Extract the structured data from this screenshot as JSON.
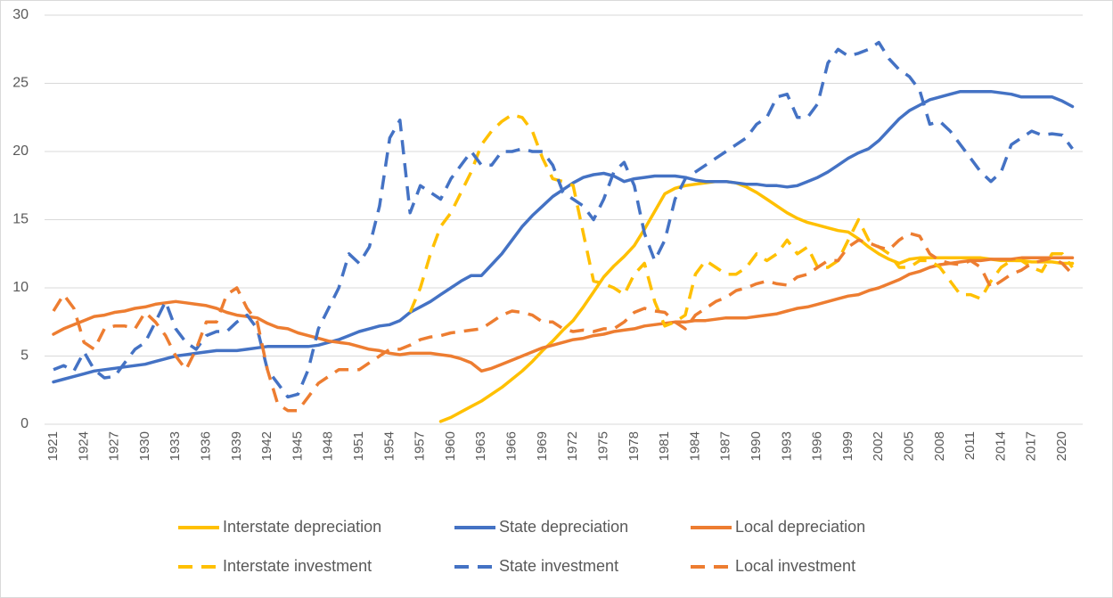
{
  "chart_data": {
    "type": "line",
    "categories": [
      "1921",
      null,
      null,
      "1924",
      null,
      null,
      "1927",
      null,
      null,
      "1930",
      null,
      null,
      "1933",
      null,
      null,
      "1936",
      null,
      null,
      "1939",
      null,
      null,
      "1942",
      null,
      null,
      "1945",
      null,
      null,
      "1948",
      null,
      null,
      "1951",
      null,
      null,
      "1954",
      null,
      null,
      "1957",
      null,
      null,
      "1960",
      null,
      null,
      "1963",
      null,
      null,
      "1966",
      null,
      null,
      "1969",
      null,
      null,
      "1972",
      null,
      null,
      "1975",
      null,
      null,
      "1978",
      null,
      null,
      "1981",
      null,
      null,
      "1984",
      null,
      null,
      "1987",
      null,
      null,
      "1990",
      null,
      null,
      "1993",
      null,
      null,
      "1996",
      null,
      null,
      "1999",
      null,
      null,
      "2002",
      null,
      null,
      "2005",
      null,
      null,
      "2008",
      null,
      null,
      "2011",
      null,
      null,
      "2014",
      null,
      null,
      "2017",
      null,
      null,
      "2020",
      null
    ],
    "ylim": [
      0,
      30
    ],
    "yticks": [
      0,
      5,
      10,
      15,
      20,
      25,
      30
    ],
    "grid": true,
    "series": [
      {
        "name": "Interstate depreciation",
        "color": "#FFC000",
        "dash": false,
        "values": [
          null,
          null,
          null,
          null,
          null,
          null,
          null,
          null,
          null,
          null,
          null,
          null,
          null,
          null,
          null,
          null,
          null,
          null,
          null,
          null,
          null,
          null,
          null,
          null,
          null,
          null,
          null,
          null,
          null,
          null,
          null,
          null,
          null,
          null,
          null,
          null,
          null,
          null,
          0.2,
          0.5,
          0.9,
          1.3,
          1.7,
          2.2,
          2.7,
          3.3,
          3.9,
          4.6,
          5.4,
          6.1,
          6.9,
          7.6,
          8.6,
          9.7,
          10.8,
          11.6,
          12.3,
          13.1,
          14.3,
          15.6,
          16.9,
          17.3,
          17.5,
          17.6,
          17.7,
          17.8,
          17.8,
          17.7,
          17.4,
          17.0,
          16.5,
          16.0,
          15.5,
          15.1,
          14.8,
          14.6,
          14.4,
          14.2,
          14.1,
          13.6,
          13.0,
          12.5,
          12.1,
          11.8,
          12.1,
          12.2,
          12.2,
          12.2,
          12.2,
          12.2,
          12.2,
          12.2,
          12.1,
          12.0,
          12.0,
          12.0,
          11.9,
          11.9,
          11.9,
          11.8,
          11.8
        ]
      },
      {
        "name": "State depreciation",
        "color": "#4472C4",
        "dash": false,
        "values": [
          3.1,
          3.3,
          3.5,
          3.7,
          3.9,
          4.0,
          4.1,
          4.2,
          4.3,
          4.4,
          4.6,
          4.8,
          5.0,
          5.1,
          5.2,
          5.3,
          5.4,
          5.4,
          5.4,
          5.5,
          5.6,
          5.7,
          5.7,
          5.7,
          5.7,
          5.7,
          5.8,
          6.0,
          6.2,
          6.5,
          6.8,
          7.0,
          7.2,
          7.3,
          7.6,
          8.2,
          8.6,
          9.0,
          9.5,
          10.0,
          10.5,
          10.9,
          10.9,
          11.7,
          12.5,
          13.5,
          14.5,
          15.3,
          16.0,
          16.7,
          17.2,
          17.7,
          18.1,
          18.3,
          18.4,
          18.2,
          17.8,
          18.0,
          18.1,
          18.2,
          18.2,
          18.2,
          18.1,
          17.9,
          17.8,
          17.8,
          17.8,
          17.7,
          17.6,
          17.6,
          17.5,
          17.5,
          17.4,
          17.5,
          17.8,
          18.1,
          18.5,
          19.0,
          19.5,
          19.9,
          20.2,
          20.8,
          21.6,
          22.4,
          23.0,
          23.4,
          23.8,
          24.0,
          24.2,
          24.4,
          24.4,
          24.4,
          24.4,
          24.3,
          24.2,
          24.0,
          24.0,
          24.0,
          24.0,
          23.7,
          23.3
        ]
      },
      {
        "name": "Local depreciation",
        "color": "#ED7D31",
        "dash": false,
        "values": [
          6.6,
          7.0,
          7.3,
          7.6,
          7.9,
          8.0,
          8.2,
          8.3,
          8.5,
          8.6,
          8.8,
          8.9,
          9.0,
          8.9,
          8.8,
          8.7,
          8.5,
          8.2,
          8.0,
          7.9,
          7.8,
          7.4,
          7.1,
          7.0,
          6.7,
          6.5,
          6.3,
          6.1,
          6.0,
          5.9,
          5.7,
          5.5,
          5.4,
          5.2,
          5.1,
          5.2,
          5.2,
          5.2,
          5.1,
          5.0,
          4.8,
          4.5,
          3.9,
          4.1,
          4.4,
          4.7,
          5.0,
          5.3,
          5.6,
          5.8,
          6.0,
          6.2,
          6.3,
          6.5,
          6.6,
          6.8,
          6.9,
          7.0,
          7.2,
          7.3,
          7.4,
          7.5,
          7.5,
          7.6,
          7.6,
          7.7,
          7.8,
          7.8,
          7.8,
          7.9,
          8.0,
          8.1,
          8.3,
          8.5,
          8.6,
          8.8,
          9.0,
          9.2,
          9.4,
          9.5,
          9.8,
          10.0,
          10.3,
          10.6,
          11.0,
          11.2,
          11.5,
          11.7,
          11.8,
          11.9,
          12.0,
          12.0,
          12.1,
          12.1,
          12.1,
          12.2,
          12.2,
          12.2,
          12.2,
          12.2,
          12.2
        ]
      },
      {
        "name": "Interstate investment",
        "color": "#FFC000",
        "dash": true,
        "values": [
          null,
          null,
          null,
          null,
          null,
          null,
          null,
          null,
          null,
          null,
          null,
          null,
          null,
          null,
          null,
          null,
          null,
          null,
          null,
          null,
          null,
          null,
          null,
          null,
          null,
          null,
          null,
          null,
          null,
          null,
          null,
          null,
          null,
          null,
          null,
          8.2,
          10.0,
          12.5,
          14.5,
          15.5,
          17.0,
          18.5,
          20.5,
          21.5,
          22.2,
          22.7,
          22.5,
          21.5,
          19.5,
          18.0,
          17.8,
          17.5,
          14.0,
          10.5,
          10.3,
          10.0,
          9.5,
          11.0,
          11.8,
          9.0,
          7.2,
          7.5,
          8.0,
          11.0,
          12.0,
          11.5,
          11.0,
          11.0,
          11.5,
          12.5,
          12.0,
          12.5,
          13.5,
          12.5,
          13.0,
          11.5,
          11.5,
          12.0,
          13.5,
          15.0,
          13.5,
          13.0,
          12.5,
          11.5,
          11.5,
          12.0,
          12.0,
          11.5,
          10.5,
          9.5,
          9.5,
          9.2,
          10.5,
          11.5,
          12.0,
          12.0,
          11.5,
          11.2,
          12.5,
          12.5,
          11.5
        ]
      },
      {
        "name": "State investment",
        "color": "#4472C4",
        "dash": true,
        "values": [
          4.0,
          4.3,
          3.9,
          5.3,
          4.0,
          3.4,
          3.5,
          4.5,
          5.5,
          6.0,
          7.5,
          9.0,
          7.0,
          6.0,
          5.5,
          6.5,
          6.8,
          6.8,
          7.5,
          8.0,
          7.0,
          4.0,
          3.0,
          2.0,
          2.2,
          4.0,
          7.0,
          8.5,
          10.0,
          12.5,
          11.8,
          13.0,
          16.0,
          21.0,
          22.3,
          15.5,
          17.5,
          17.0,
          16.5,
          18.0,
          19.0,
          20.0,
          19.0,
          19.0,
          20.0,
          20.0,
          20.2,
          20.0,
          20.0,
          19.0,
          17.0,
          16.5,
          16.0,
          15.0,
          16.5,
          18.5,
          19.2,
          17.5,
          14.0,
          12.0,
          13.5,
          16.5,
          18.0,
          18.5,
          19.0,
          19.5,
          20.0,
          20.5,
          21.0,
          22.0,
          22.5,
          24.0,
          24.2,
          22.5,
          22.5,
          23.5,
          26.5,
          27.5,
          27.0,
          27.2,
          27.5,
          28.0,
          26.8,
          26.0,
          25.5,
          24.5,
          22.0,
          22.2,
          21.5,
          20.5,
          19.5,
          18.5,
          17.8,
          18.5,
          20.5,
          21.0,
          21.5,
          21.2,
          21.3,
          21.2,
          20.2
        ]
      },
      {
        "name": "Local investment",
        "color": "#ED7D31",
        "dash": true,
        "values": [
          8.3,
          9.5,
          8.5,
          6.0,
          5.5,
          7.0,
          7.2,
          7.2,
          7.0,
          8.2,
          7.5,
          6.5,
          5.0,
          4.0,
          5.5,
          7.5,
          7.5,
          9.5,
          10.0,
          8.5,
          7.5,
          4.0,
          1.5,
          1.0,
          1.0,
          2.0,
          3.0,
          3.5,
          4.0,
          4.0,
          4.0,
          4.5,
          5.0,
          5.5,
          5.5,
          5.8,
          6.2,
          6.4,
          6.5,
          6.7,
          6.8,
          6.9,
          7.0,
          7.5,
          8.0,
          8.3,
          8.2,
          8.0,
          7.5,
          7.5,
          7.0,
          6.8,
          6.9,
          6.8,
          7.0,
          7.0,
          7.5,
          8.2,
          8.5,
          8.3,
          8.2,
          7.5,
          7.0,
          8.0,
          8.5,
          9.0,
          9.3,
          9.8,
          10.0,
          10.3,
          10.5,
          10.3,
          10.2,
          10.8,
          11.0,
          11.5,
          12.0,
          12.0,
          13.0,
          13.5,
          13.3,
          13.0,
          12.8,
          13.5,
          14.0,
          13.8,
          12.5,
          12.0,
          11.8,
          11.7,
          12.0,
          11.5,
          10.0,
          10.5,
          11.0,
          11.3,
          11.8,
          12.0,
          12.2,
          11.8,
          11.0
        ]
      }
    ]
  }
}
